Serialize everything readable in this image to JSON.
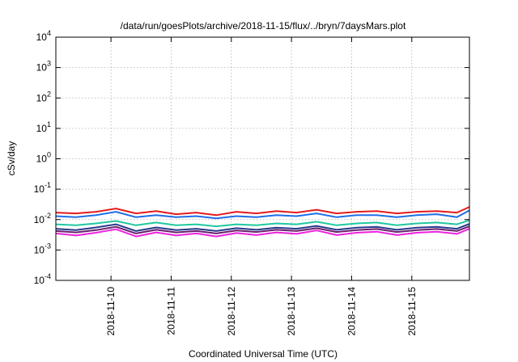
{
  "chart_data": {
    "type": "line",
    "title": "/data/run/goesPlots/archive/2018-11-15/flux/../bryn/7daysMars.plot",
    "xlabel": "Coordinated Universal Time (UTC)",
    "ylabel": "cSv/day",
    "yscale": "log",
    "ylim": [
      0.0001,
      10000
    ],
    "y_ticks": [
      {
        "base": "10",
        "exp": "-4",
        "value": 0.0001
      },
      {
        "base": "10",
        "exp": "-3",
        "value": 0.001
      },
      {
        "base": "10",
        "exp": "-2",
        "value": 0.01
      },
      {
        "base": "10",
        "exp": "-1",
        "value": 0.1
      },
      {
        "base": "10",
        "exp": "0",
        "value": 1
      },
      {
        "base": "10",
        "exp": "1",
        "value": 10
      },
      {
        "base": "10",
        "exp": "2",
        "value": 100
      },
      {
        "base": "10",
        "exp": "3",
        "value": 1000
      },
      {
        "base": "10",
        "exp": "4",
        "value": 10000
      }
    ],
    "xlim": [
      "2018-11-09T02:00",
      "2018-11-15T23:00"
    ],
    "x_ticks": [
      "2018-11-10",
      "2018-11-11",
      "2018-11-12",
      "2018-11-13",
      "2018-11-14",
      "2018-11-15"
    ],
    "grid": true,
    "x": [
      "2018-11-09T02:00",
      "2018-11-09T10:00",
      "2018-11-09T18:00",
      "2018-11-10T02:00",
      "2018-11-10T10:00",
      "2018-11-10T18:00",
      "2018-11-11T02:00",
      "2018-11-11T10:00",
      "2018-11-11T18:00",
      "2018-11-12T02:00",
      "2018-11-12T10:00",
      "2018-11-12T18:00",
      "2018-11-13T02:00",
      "2018-11-13T10:00",
      "2018-11-13T18:00",
      "2018-11-14T02:00",
      "2018-11-14T10:00",
      "2018-11-14T18:00",
      "2018-11-15T02:00",
      "2018-11-15T10:00",
      "2018-11-15T18:00",
      "2018-11-15T23:00"
    ],
    "series": [
      {
        "color": "#e41a1c",
        "values": [
          0.017,
          0.016,
          0.018,
          0.023,
          0.016,
          0.019,
          0.015,
          0.017,
          0.014,
          0.018,
          0.016,
          0.019,
          0.017,
          0.021,
          0.016,
          0.018,
          0.019,
          0.016,
          0.018,
          0.019,
          0.017,
          0.026
        ]
      },
      {
        "color": "#1e6fe8",
        "values": [
          0.013,
          0.012,
          0.014,
          0.018,
          0.012,
          0.014,
          0.012,
          0.013,
          0.011,
          0.013,
          0.012,
          0.014,
          0.013,
          0.016,
          0.012,
          0.014,
          0.014,
          0.012,
          0.014,
          0.015,
          0.012,
          0.02
        ]
      },
      {
        "color": "#1fc8a0",
        "values": [
          0.007,
          0.0065,
          0.0075,
          0.009,
          0.0065,
          0.008,
          0.0065,
          0.007,
          0.006,
          0.007,
          0.0065,
          0.0075,
          0.007,
          0.0085,
          0.0065,
          0.0075,
          0.008,
          0.0065,
          0.0075,
          0.008,
          0.007,
          0.0095
        ]
      },
      {
        "color": "#283a8a",
        "values": [
          0.005,
          0.0045,
          0.0055,
          0.007,
          0.0042,
          0.0055,
          0.0045,
          0.005,
          0.0042,
          0.0052,
          0.0046,
          0.0054,
          0.005,
          0.0062,
          0.0046,
          0.0054,
          0.0058,
          0.0046,
          0.0054,
          0.0058,
          0.005,
          0.0072
        ]
      },
      {
        "color": "#6a1f6e",
        "values": [
          0.0042,
          0.0038,
          0.0045,
          0.0058,
          0.0035,
          0.0046,
          0.0038,
          0.0042,
          0.0035,
          0.0044,
          0.0039,
          0.0046,
          0.0042,
          0.0052,
          0.0039,
          0.0045,
          0.0049,
          0.0039,
          0.0045,
          0.0049,
          0.0042,
          0.006
        ]
      },
      {
        "color": "#ee22dd",
        "values": [
          0.0035,
          0.003,
          0.0037,
          0.0048,
          0.0028,
          0.0038,
          0.003,
          0.0035,
          0.0028,
          0.0036,
          0.0031,
          0.0038,
          0.0034,
          0.0044,
          0.0031,
          0.0037,
          0.004,
          0.0031,
          0.0037,
          0.004,
          0.0034,
          0.005
        ]
      }
    ]
  }
}
